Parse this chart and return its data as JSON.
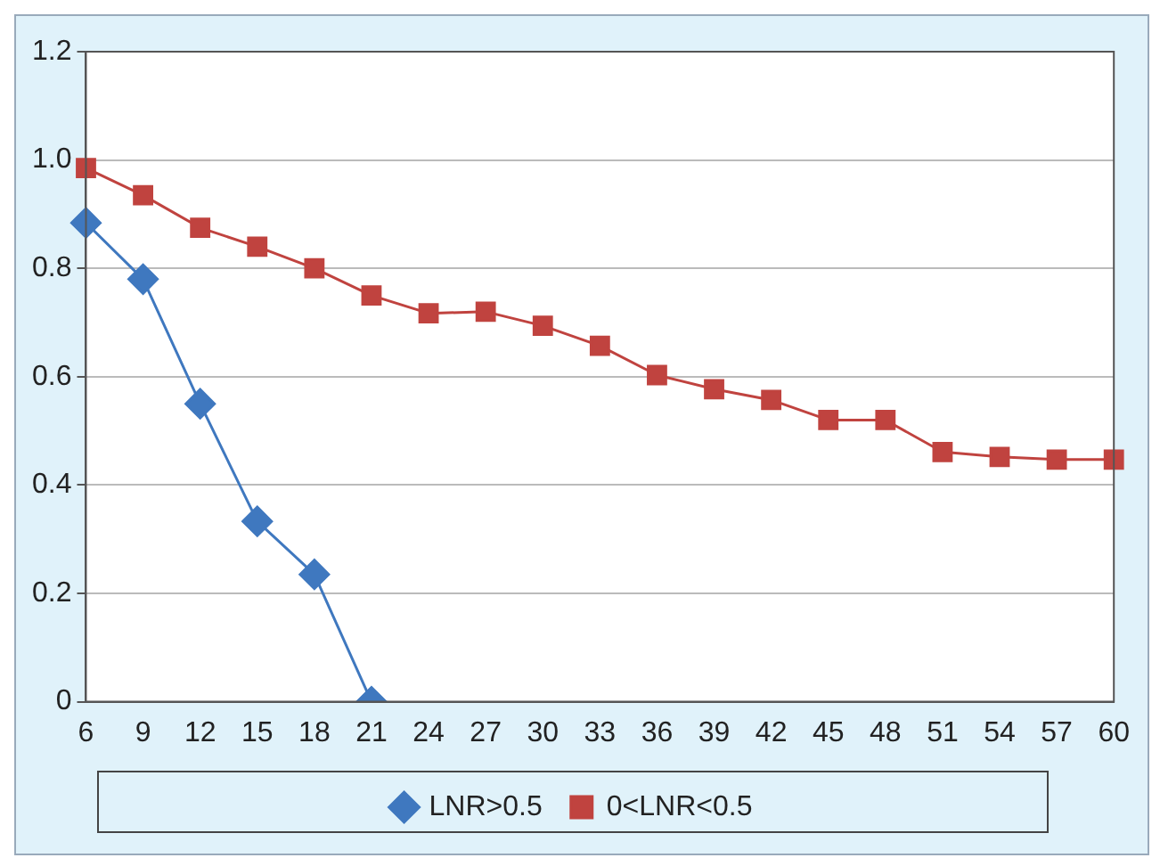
{
  "chart_data": {
    "type": "line",
    "categories": [
      "6",
      "9",
      "12",
      "15",
      "18",
      "21",
      "24",
      "27",
      "30",
      "33",
      "36",
      "39",
      "42",
      "45",
      "48",
      "51",
      "54",
      "57",
      "60"
    ],
    "series": [
      {
        "name": "LNR>0.5",
        "color": "#3f78bf",
        "marker": "diamond",
        "values": [
          0.884,
          0.78,
          0.55,
          0.333,
          0.235,
          0,
          null,
          null,
          null,
          null,
          null,
          null,
          null,
          null,
          null,
          null,
          null,
          null,
          null
        ]
      },
      {
        "name": "0<LNR<0.5",
        "color": "#c0433f",
        "marker": "square",
        "values": [
          0.985,
          0.935,
          0.875,
          0.84,
          0.8,
          0.75,
          0.717,
          0.72,
          0.694,
          0.657,
          0.603,
          0.577,
          0.557,
          0.52,
          0.52,
          0.461,
          0.452,
          0.447,
          0.447
        ]
      }
    ],
    "ylim": [
      0,
      1.2
    ],
    "yticks": [
      0,
      0.2,
      0.4,
      0.6,
      0.8,
      {
        "value": 1,
        "label": "1.0"
      },
      1.2
    ],
    "grid": "y",
    "legend": "bottom",
    "line_style": "solid"
  }
}
